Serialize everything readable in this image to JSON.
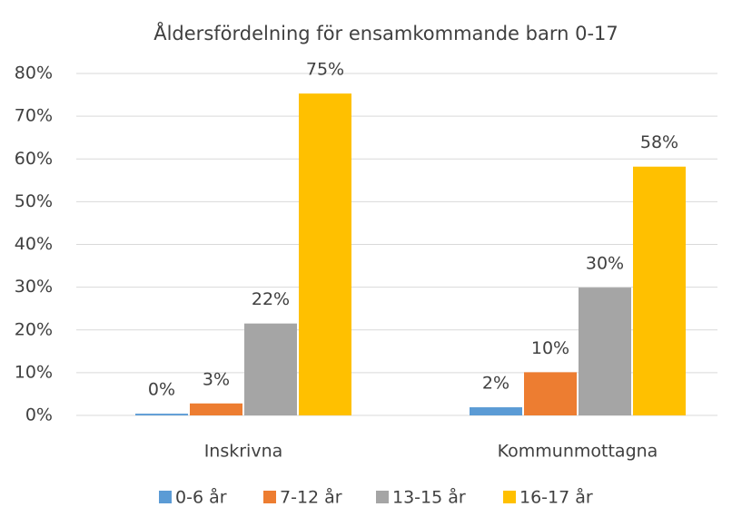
{
  "chart_data": {
    "type": "bar",
    "title": "Åldersfördelning för ensamkommande barn 0-17",
    "categories": [
      "Inskrivna",
      "Kommunmottagna"
    ],
    "series": [
      {
        "name": "0-6 år",
        "color": "#5b9bd5",
        "values": [
          0.4,
          1.9
        ],
        "value_labels": [
          "0%",
          "2%"
        ]
      },
      {
        "name": "7-12 år",
        "color": "#ed7d31",
        "values": [
          2.8,
          10.1
        ],
        "value_labels": [
          "3%",
          "10%"
        ]
      },
      {
        "name": "13-15 år",
        "color": "#a5a5a5",
        "values": [
          21.5,
          29.9
        ],
        "value_labels": [
          "22%",
          "30%"
        ]
      },
      {
        "name": "16-17 år",
        "color": "#ffc000",
        "values": [
          75.3,
          58.2
        ],
        "value_labels": [
          "75%",
          "58%"
        ]
      }
    ],
    "ylim": [
      0,
      80
    ],
    "yticks": [
      {
        "value": 0,
        "label": "0%"
      },
      {
        "value": 10,
        "label": "10%"
      },
      {
        "value": 20,
        "label": "20%"
      },
      {
        "value": 30,
        "label": "30%"
      },
      {
        "value": 40,
        "label": "40%"
      },
      {
        "value": 50,
        "label": "50%"
      },
      {
        "value": 60,
        "label": "60%"
      },
      {
        "value": 70,
        "label": "70%"
      },
      {
        "value": 80,
        "label": "80%"
      }
    ],
    "grid": true,
    "legend": "bottom"
  }
}
